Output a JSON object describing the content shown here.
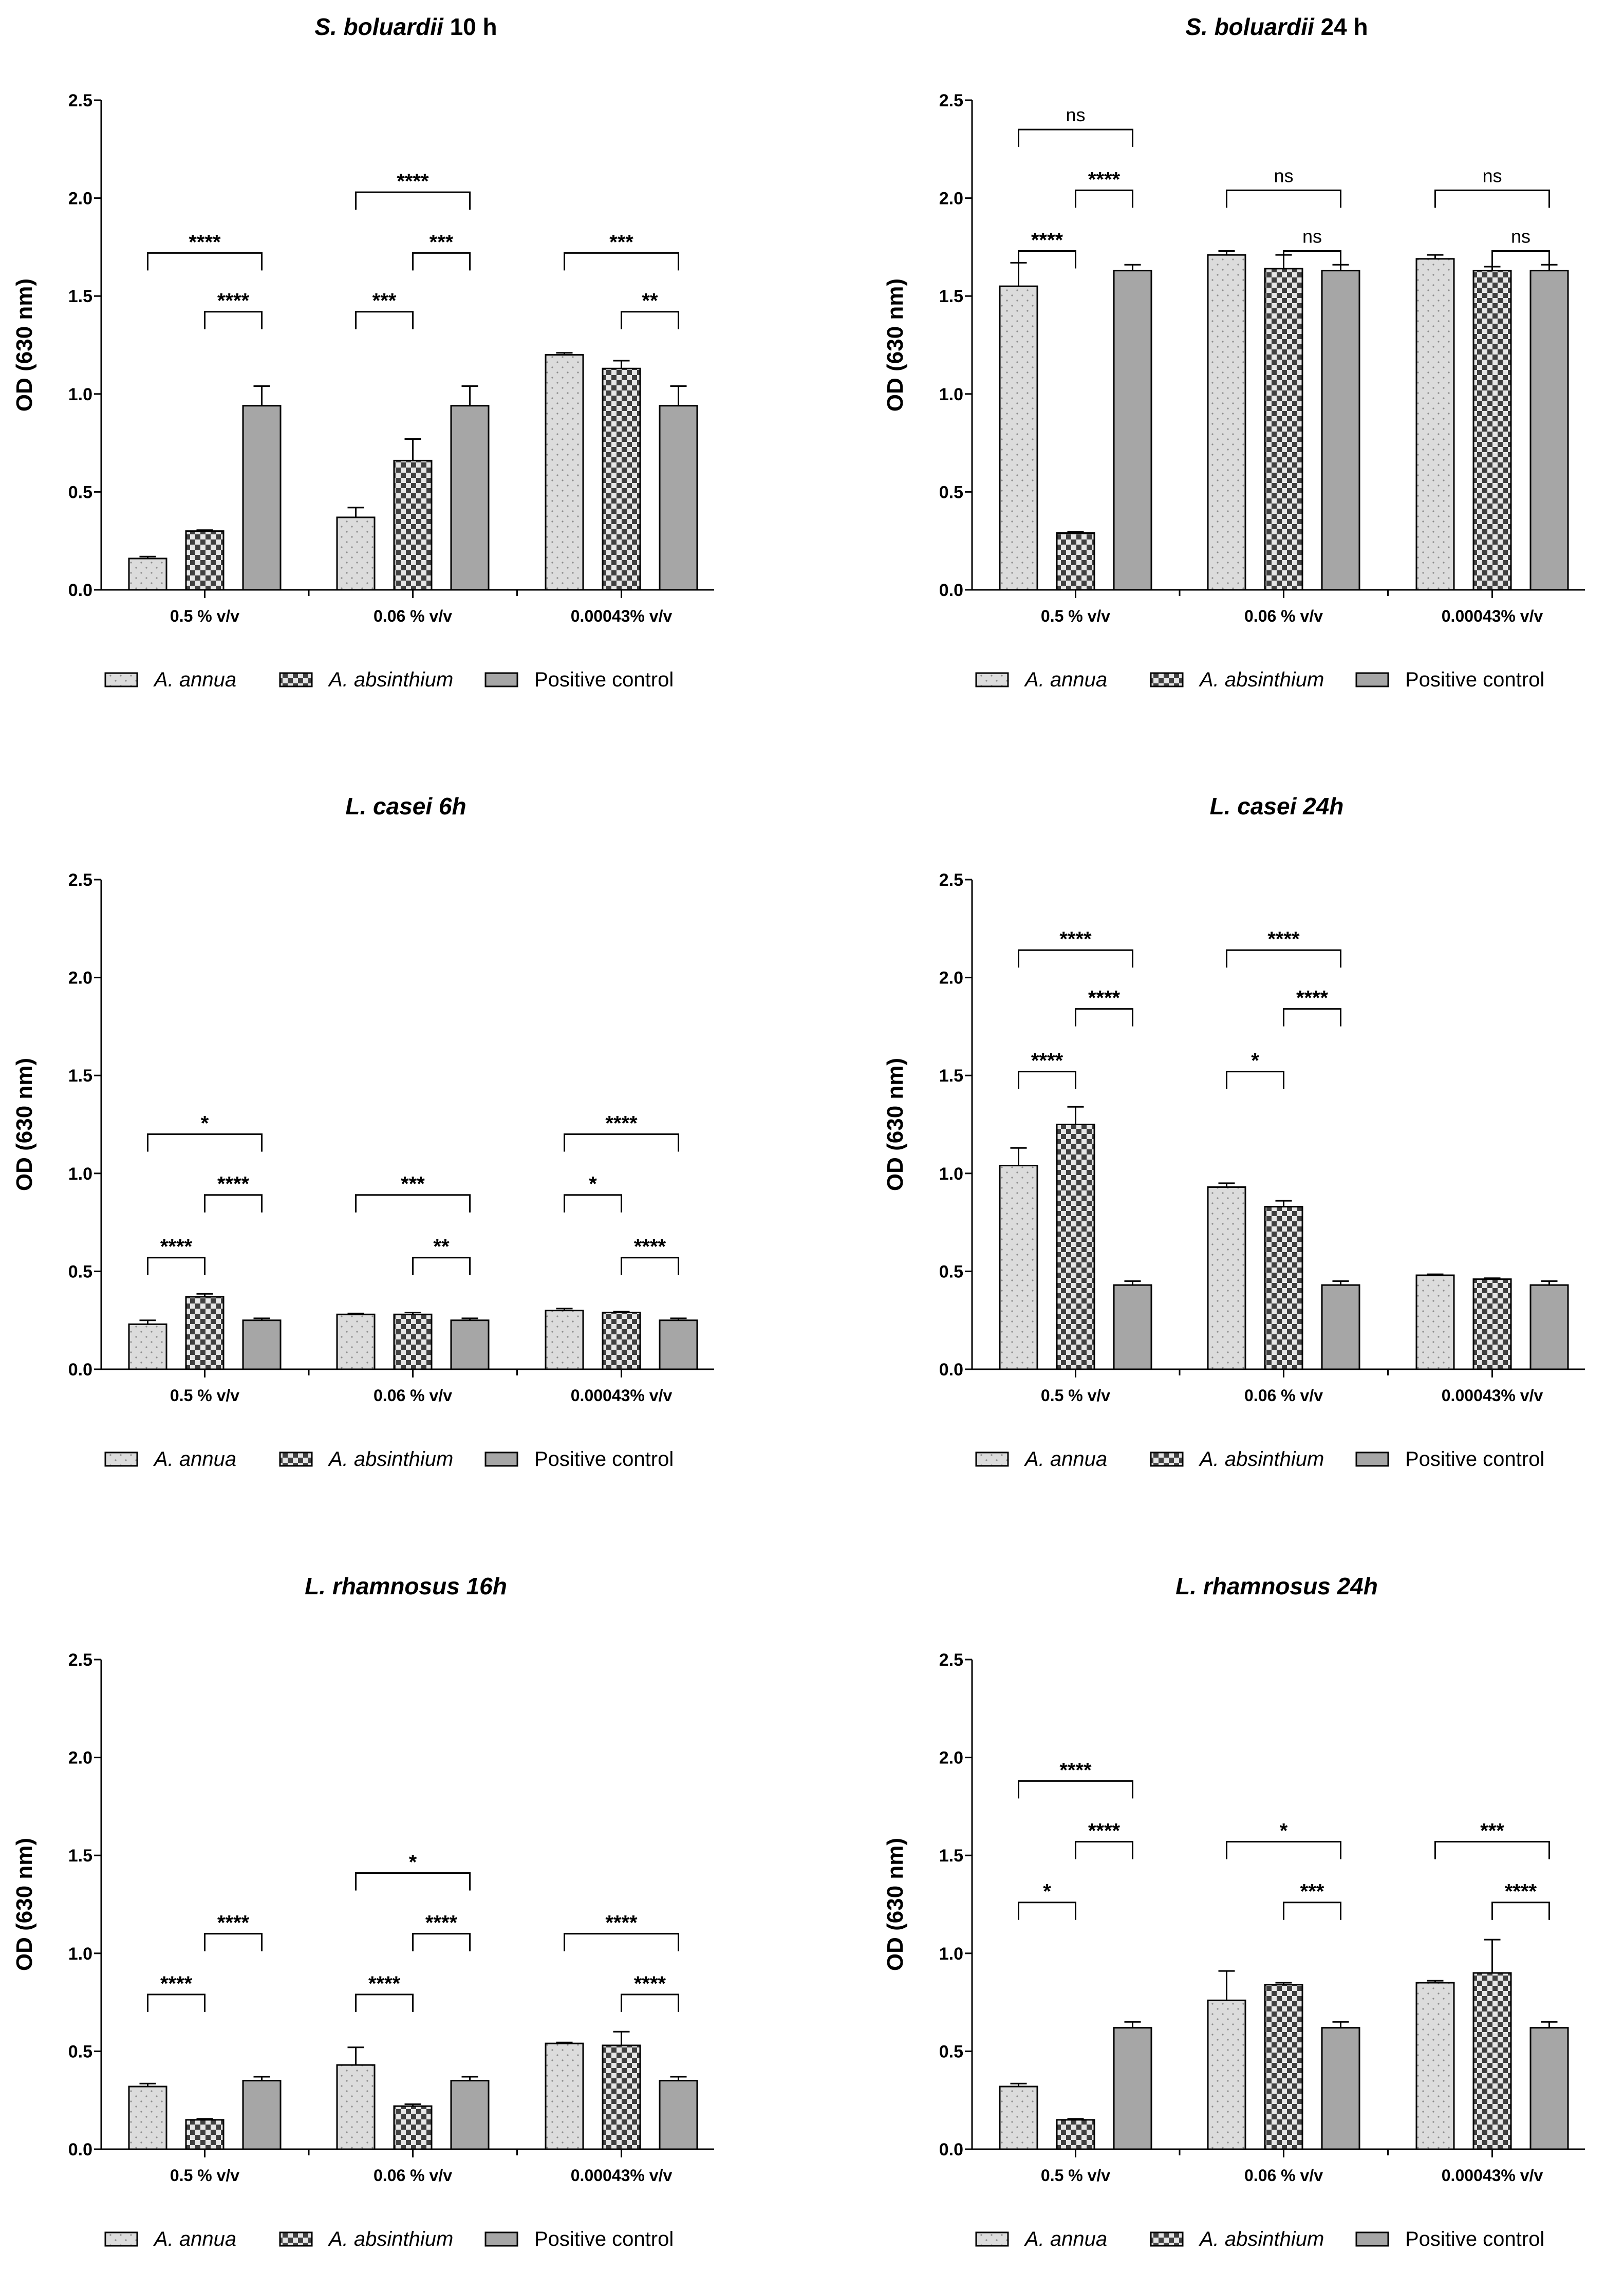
{
  "figure": {
    "ylabel": "OD (630 nm)"
  },
  "chart_data": [
    {
      "type": "bar",
      "title_italic": "S. boluardii",
      "title_rest": " 10 h",
      "ylabel": "OD (630 nm)",
      "ylim": [
        0,
        2.5
      ],
      "yticks": [
        "0.0",
        "0.5",
        "1.0",
        "1.5",
        "2.0",
        "2.5"
      ],
      "categories": [
        "0.5 % v/v",
        "0.06 % v/v",
        "0.00043% v/v"
      ],
      "series": [
        {
          "name": "A. annua",
          "values": [
            0.16,
            0.37,
            1.2
          ],
          "errors": [
            0.01,
            0.05,
            0.01
          ]
        },
        {
          "name": "A. absinthium",
          "values": [
            0.3,
            0.66,
            1.13
          ],
          "errors": [
            0.005,
            0.11,
            0.04
          ]
        },
        {
          "name": "Positive control",
          "values": [
            0.94,
            0.94,
            0.94
          ],
          "errors": [
            0.1,
            0.1,
            0.1
          ]
        }
      ],
      "significance": [
        {
          "group": 0,
          "from": 0,
          "to": 2,
          "y": 1.72,
          "label": "****"
        },
        {
          "group": 0,
          "from": 1,
          "to": 2,
          "y": 1.42,
          "label": "****"
        },
        {
          "group": 1,
          "from": 0,
          "to": 2,
          "y": 2.03,
          "label": "****"
        },
        {
          "group": 1,
          "from": 1,
          "to": 2,
          "y": 1.72,
          "label": "***"
        },
        {
          "group": 1,
          "from": 0,
          "to": 1,
          "y": 1.42,
          "label": "***"
        },
        {
          "group": 2,
          "from": 0,
          "to": 2,
          "y": 1.72,
          "label": "***"
        },
        {
          "group": 2,
          "from": 1,
          "to": 2,
          "y": 1.42,
          "label": "**"
        }
      ],
      "legend": [
        "A. annua",
        "A. absinthium",
        "Positive control"
      ]
    },
    {
      "type": "bar",
      "title_italic": "S. boluardii",
      "title_rest": " 24 h",
      "ylabel": "OD (630 nm)",
      "ylim": [
        0,
        2.5
      ],
      "yticks": [
        "0.0",
        "0.5",
        "1.0",
        "1.5",
        "2.0",
        "2.5"
      ],
      "categories": [
        "0.5 % v/v",
        "0.06 % v/v",
        "0.00043% v/v"
      ],
      "series": [
        {
          "name": "A. annua",
          "values": [
            1.55,
            1.71,
            1.69
          ],
          "errors": [
            0.12,
            0.02,
            0.02
          ]
        },
        {
          "name": "A. absinthium",
          "values": [
            0.29,
            1.64,
            1.63
          ],
          "errors": [
            0.005,
            0.07,
            0.02
          ]
        },
        {
          "name": "Positive control",
          "values": [
            1.63,
            1.63,
            1.63
          ],
          "errors": [
            0.03,
            0.03,
            0.03
          ]
        }
      ],
      "significance": [
        {
          "group": 0,
          "from": 0,
          "to": 2,
          "y": 2.35,
          "label": "ns"
        },
        {
          "group": 0,
          "from": 1,
          "to": 2,
          "y": 2.04,
          "label": "****"
        },
        {
          "group": 0,
          "from": 0,
          "to": 1,
          "y": 1.73,
          "label": "****"
        },
        {
          "group": 1,
          "from": 0,
          "to": 2,
          "y": 2.04,
          "label": "ns"
        },
        {
          "group": 1,
          "from": 1,
          "to": 2,
          "y": 1.73,
          "label": "ns"
        },
        {
          "group": 2,
          "from": 0,
          "to": 2,
          "y": 2.04,
          "label": "ns"
        },
        {
          "group": 2,
          "from": 1,
          "to": 2,
          "y": 1.73,
          "label": "ns"
        }
      ],
      "legend": [
        "A. annua",
        "A. absinthium",
        "Positive control"
      ]
    },
    {
      "type": "bar",
      "title_italic": "L. casei 6h",
      "title_rest": "",
      "ylabel": "OD (630 nm)",
      "ylim": [
        0,
        2.5
      ],
      "yticks": [
        "0.0",
        "0.5",
        "1.0",
        "1.5",
        "2.0",
        "2.5"
      ],
      "categories": [
        "0.5 % v/v",
        "0.06 % v/v",
        "0.00043% v/v"
      ],
      "series": [
        {
          "name": "A. annua",
          "values": [
            0.23,
            0.28,
            0.3
          ],
          "errors": [
            0.02,
            0.005,
            0.01
          ]
        },
        {
          "name": "A. absinthium",
          "values": [
            0.37,
            0.28,
            0.29
          ],
          "errors": [
            0.015,
            0.01,
            0.005
          ]
        },
        {
          "name": "Positive control",
          "values": [
            0.25,
            0.25,
            0.25
          ],
          "errors": [
            0.01,
            0.01,
            0.01
          ]
        }
      ],
      "significance": [
        {
          "group": 0,
          "from": 0,
          "to": 2,
          "y": 1.2,
          "label": "*"
        },
        {
          "group": 0,
          "from": 1,
          "to": 2,
          "y": 0.89,
          "label": "****"
        },
        {
          "group": 0,
          "from": 0,
          "to": 1,
          "y": 0.57,
          "label": "****"
        },
        {
          "group": 1,
          "from": 0,
          "to": 2,
          "y": 0.89,
          "label": "***"
        },
        {
          "group": 1,
          "from": 1,
          "to": 2,
          "y": 0.57,
          "label": "**"
        },
        {
          "group": 2,
          "from": 0,
          "to": 2,
          "y": 1.2,
          "label": "****"
        },
        {
          "group": 2,
          "from": 0,
          "to": 1,
          "y": 0.89,
          "label": "*"
        },
        {
          "group": 2,
          "from": 1,
          "to": 2,
          "y": 0.57,
          "label": "****"
        }
      ],
      "legend": [
        "A. annua",
        "A. absinthium",
        "Positive control"
      ]
    },
    {
      "type": "bar",
      "title_italic": "L. casei 24h",
      "title_rest": "",
      "ylabel": "OD (630 nm)",
      "ylim": [
        0,
        2.5
      ],
      "yticks": [
        "0.0",
        "0.5",
        "1.0",
        "1.5",
        "2.0",
        "2.5"
      ],
      "categories": [
        "0.5 % v/v",
        "0.06 % v/v",
        "0.00043% v/v"
      ],
      "series": [
        {
          "name": "A. annua",
          "values": [
            1.04,
            0.93,
            0.48
          ],
          "errors": [
            0.09,
            0.02,
            0.005
          ]
        },
        {
          "name": "A. absinthium",
          "values": [
            1.25,
            0.83,
            0.46
          ],
          "errors": [
            0.09,
            0.03,
            0.005
          ]
        },
        {
          "name": "Positive control",
          "values": [
            0.43,
            0.43,
            0.43
          ],
          "errors": [
            0.02,
            0.02,
            0.02
          ]
        }
      ],
      "significance": [
        {
          "group": 0,
          "from": 0,
          "to": 2,
          "y": 2.14,
          "label": "****"
        },
        {
          "group": 0,
          "from": 1,
          "to": 2,
          "y": 1.84,
          "label": "****"
        },
        {
          "group": 0,
          "from": 0,
          "to": 1,
          "y": 1.52,
          "label": "****"
        },
        {
          "group": 1,
          "from": 0,
          "to": 2,
          "y": 2.14,
          "label": "****"
        },
        {
          "group": 1,
          "from": 1,
          "to": 2,
          "y": 1.84,
          "label": "****"
        },
        {
          "group": 1,
          "from": 0,
          "to": 1,
          "y": 1.52,
          "label": "*"
        }
      ],
      "legend": [
        "A. annua",
        "A. absinthium",
        "Positive control"
      ]
    },
    {
      "type": "bar",
      "title_italic": "L. rhamnosus 16h",
      "title_rest": "",
      "ylabel": "OD (630 nm)",
      "ylim": [
        0,
        2.5
      ],
      "yticks": [
        "0.0",
        "0.5",
        "1.0",
        "1.5",
        "2.0",
        "2.5"
      ],
      "categories": [
        "0.5 % v/v",
        "0.06 % v/v",
        "0.00043% v/v"
      ],
      "series": [
        {
          "name": "A. annua",
          "values": [
            0.32,
            0.43,
            0.54
          ],
          "errors": [
            0.015,
            0.09,
            0.005
          ]
        },
        {
          "name": "A. absinthium",
          "values": [
            0.15,
            0.22,
            0.53
          ],
          "errors": [
            0.005,
            0.01,
            0.07
          ]
        },
        {
          "name": "Positive control",
          "values": [
            0.35,
            0.35,
            0.35
          ],
          "errors": [
            0.02,
            0.02,
            0.02
          ]
        }
      ],
      "significance": [
        {
          "group": 0,
          "from": 1,
          "to": 2,
          "y": 1.1,
          "label": "****"
        },
        {
          "group": 0,
          "from": 0,
          "to": 1,
          "y": 0.79,
          "label": "****"
        },
        {
          "group": 1,
          "from": 0,
          "to": 2,
          "y": 1.41,
          "label": "*"
        },
        {
          "group": 1,
          "from": 1,
          "to": 2,
          "y": 1.1,
          "label": "****"
        },
        {
          "group": 1,
          "from": 0,
          "to": 1,
          "y": 0.79,
          "label": "****"
        },
        {
          "group": 2,
          "from": 0,
          "to": 2,
          "y": 1.1,
          "label": "****"
        },
        {
          "group": 2,
          "from": 1,
          "to": 2,
          "y": 0.79,
          "label": "****"
        }
      ],
      "legend": [
        "A. annua",
        "A. absinthium",
        "Positive control"
      ]
    },
    {
      "type": "bar",
      "title_italic": "L. rhamnosus 24h",
      "title_rest": "",
      "ylabel": "OD (630 nm)",
      "ylim": [
        0,
        2.5
      ],
      "yticks": [
        "0.0",
        "0.5",
        "1.0",
        "1.5",
        "2.0",
        "2.5"
      ],
      "categories": [
        "0.5 % v/v",
        "0.06 % v/v",
        "0.00043% v/v"
      ],
      "series": [
        {
          "name": "A. annua",
          "values": [
            0.32,
            0.76,
            0.85
          ],
          "errors": [
            0.015,
            0.15,
            0.01
          ]
        },
        {
          "name": "A. absinthium",
          "values": [
            0.15,
            0.84,
            0.9
          ],
          "errors": [
            0.005,
            0.01,
            0.17
          ]
        },
        {
          "name": "Positive control",
          "values": [
            0.62,
            0.62,
            0.62
          ],
          "errors": [
            0.03,
            0.03,
            0.03
          ]
        }
      ],
      "significance": [
        {
          "group": 0,
          "from": 0,
          "to": 2,
          "y": 1.88,
          "label": "****"
        },
        {
          "group": 0,
          "from": 1,
          "to": 2,
          "y": 1.57,
          "label": "****"
        },
        {
          "group": 0,
          "from": 0,
          "to": 1,
          "y": 1.26,
          "label": "*"
        },
        {
          "group": 1,
          "from": 0,
          "to": 2,
          "y": 1.57,
          "label": "*"
        },
        {
          "group": 1,
          "from": 1,
          "to": 2,
          "y": 1.26,
          "label": "***"
        },
        {
          "group": 2,
          "from": 0,
          "to": 2,
          "y": 1.57,
          "label": "***"
        },
        {
          "group": 2,
          "from": 1,
          "to": 2,
          "y": 1.26,
          "label": "****"
        }
      ],
      "legend": [
        "A. annua",
        "A. absinthium",
        "Positive control"
      ]
    }
  ]
}
